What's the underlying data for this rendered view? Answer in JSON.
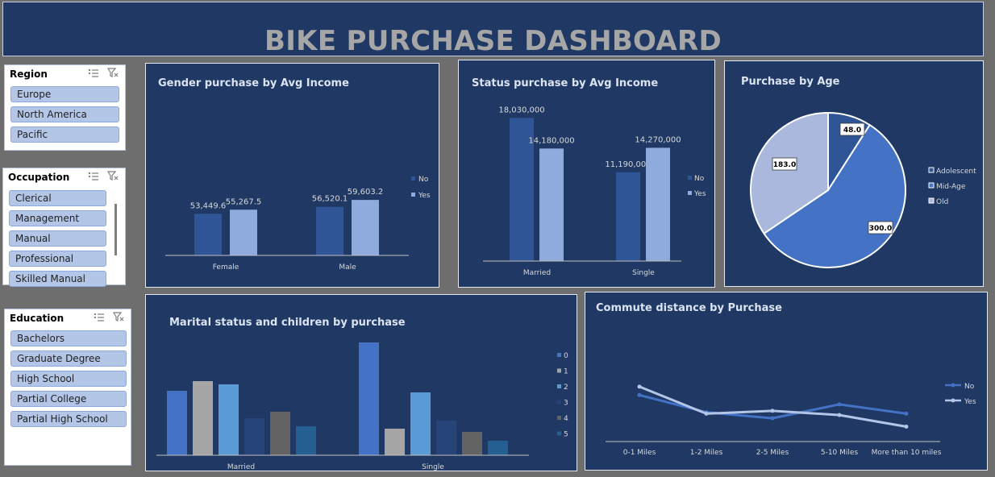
{
  "title": "BIKE PURCHASE DASHBOARD",
  "slicers": {
    "region": {
      "title": "Region",
      "items": [
        "Europe",
        "North America",
        "Pacific"
      ]
    },
    "occupation": {
      "title": "Occupation",
      "items": [
        "Clerical",
        "Management",
        "Manual",
        "Professional",
        "Skilled Manual"
      ]
    },
    "education": {
      "title": "Education",
      "items": [
        "Bachelors",
        "Graduate Degree",
        "High School",
        "Partial College",
        "Partial High School"
      ]
    }
  },
  "charts": {
    "gender": {
      "title": "Gender purchase by Avg Income"
    },
    "status": {
      "title": "Status purchase by Avg Income"
    },
    "age": {
      "title": "Purchase by Age"
    },
    "marital": {
      "title": "Marital status and children by purchase"
    },
    "commute": {
      "title": "Commute distance by Purchase"
    }
  },
  "colors": {
    "no": "#2f5597",
    "yes": "#8faadc",
    "accent": "#4472c4",
    "panel": "#1f3864"
  },
  "chart_data": [
    {
      "id": "gender",
      "type": "bar",
      "title": "Gender purchase by Avg Income",
      "categories": [
        "Female",
        "Male"
      ],
      "series": [
        {
          "name": "No",
          "values": [
            53449.6,
            56520.1
          ],
          "labels": [
            "53,449.6",
            "56,520.1"
          ]
        },
        {
          "name": "Yes",
          "values": [
            55267.5,
            59603.2
          ],
          "labels": [
            "55,267.5",
            "59,603.2"
          ]
        }
      ],
      "legend": "right"
    },
    {
      "id": "status",
      "type": "bar",
      "title": "Status purchase by Avg Income",
      "categories": [
        "Married",
        "Single"
      ],
      "series": [
        {
          "name": "No",
          "values": [
            18030000,
            11190000
          ],
          "labels": [
            "18,030,000",
            "11,190,000"
          ]
        },
        {
          "name": "Yes",
          "values": [
            14180000,
            14270000
          ],
          "labels": [
            "14,180,000",
            "14,270,000"
          ]
        }
      ],
      "legend": "right"
    },
    {
      "id": "age",
      "type": "pie",
      "title": "Purchase by Age",
      "categories": [
        "Adolescent",
        "Mid-Age",
        "Old"
      ],
      "values": [
        48.0,
        300.0,
        183.0
      ],
      "labels": [
        "48.0",
        "300.0",
        "183.0"
      ],
      "legend": "right"
    },
    {
      "id": "marital",
      "type": "bar",
      "title": "Marital status and children by purchase",
      "categories": [
        "Married",
        "Single"
      ],
      "series": [
        {
          "name": "0",
          "values": [
            80,
            140
          ]
        },
        {
          "name": "1",
          "values": [
            92,
            33
          ]
        },
        {
          "name": "2",
          "values": [
            88,
            78
          ]
        },
        {
          "name": "3",
          "values": [
            46,
            43
          ]
        },
        {
          "name": "4",
          "values": [
            54,
            29
          ]
        },
        {
          "name": "5",
          "values": [
            36,
            18
          ]
        }
      ],
      "legend": "right"
    },
    {
      "id": "commute",
      "type": "line",
      "title": "Commute distance by Purchase",
      "categories": [
        "0-1 Miles",
        "1-2 Miles",
        "2-5 Miles",
        "5-10 Miles",
        "More than 10 miles"
      ],
      "series": [
        {
          "name": "No",
          "values": [
            100,
            63,
            50,
            80,
            60
          ]
        },
        {
          "name": "Yes",
          "values": [
            118,
            60,
            66,
            57,
            32
          ]
        }
      ],
      "legend": "right"
    }
  ]
}
